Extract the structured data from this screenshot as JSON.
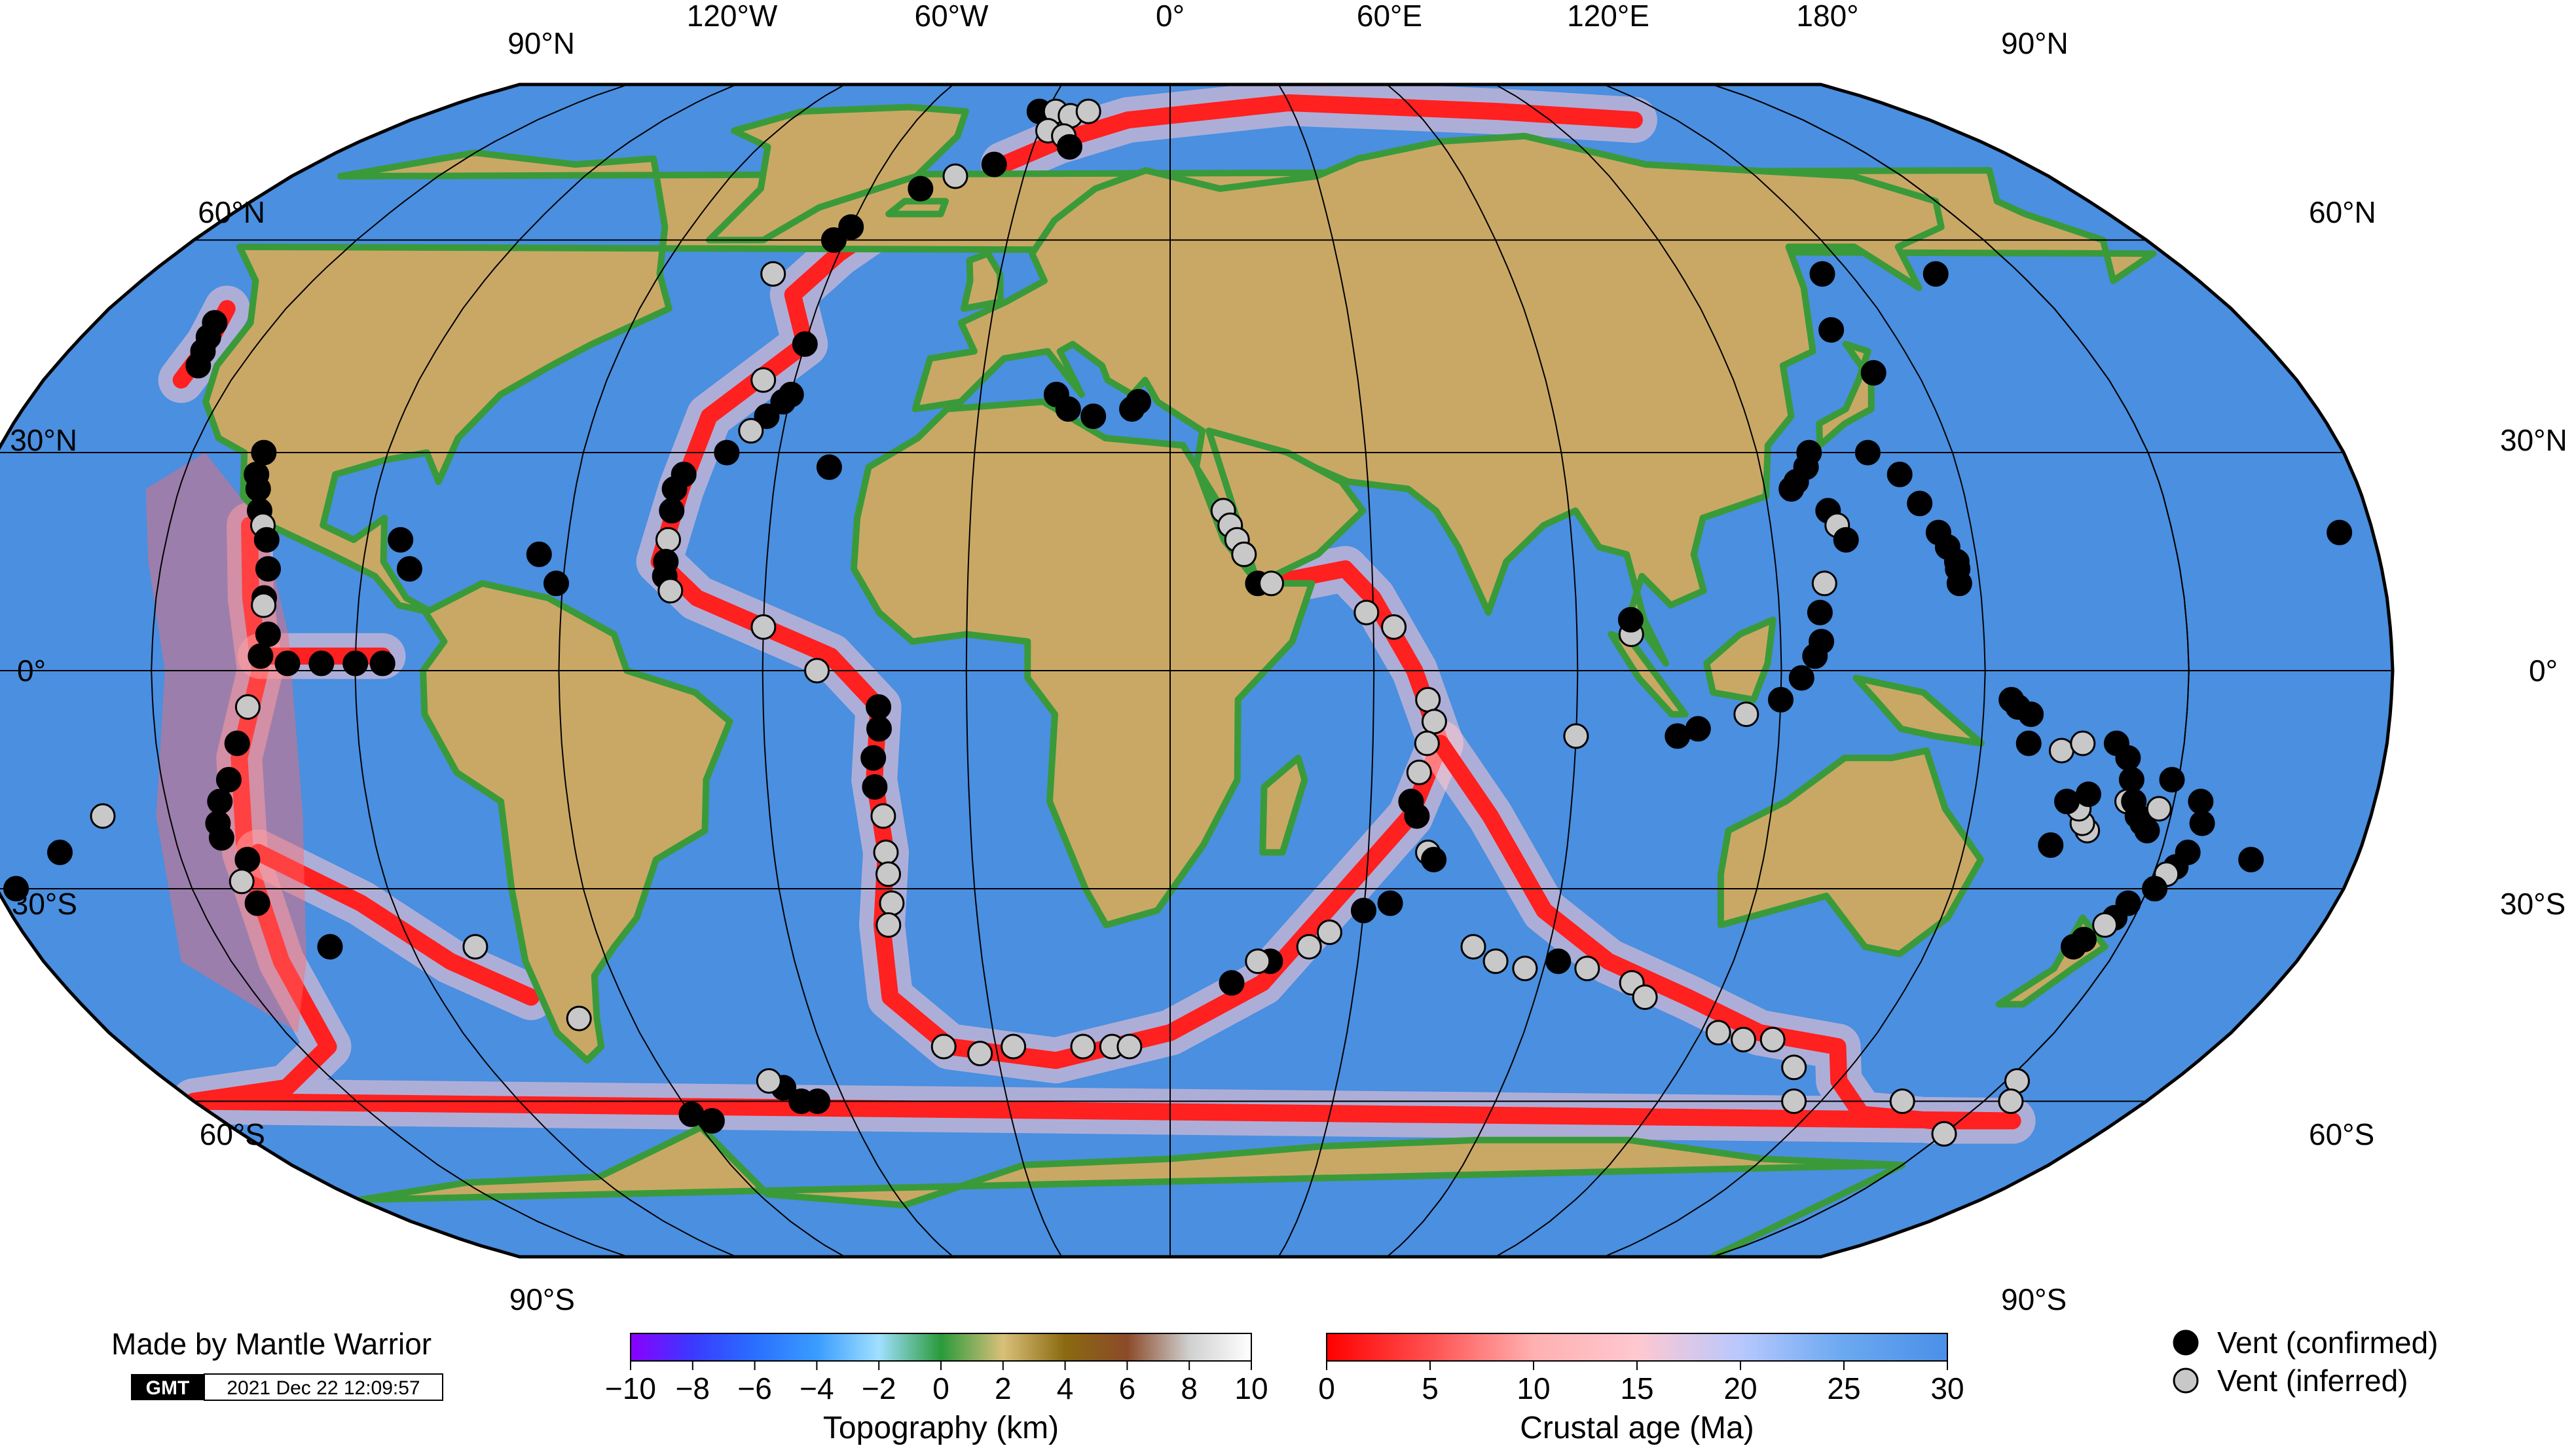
{
  "map": {
    "projection": "Robinson",
    "central_meridian_deg": 30,
    "top_lat_labels": [
      "90°N",
      "90°N"
    ],
    "bottom_lat_labels": [
      "90°S",
      "90°S"
    ],
    "lon_labels": [
      "120°W",
      "60°W",
      "0°",
      "60°E",
      "120°E",
      "180°"
    ],
    "lat_labels_left": [
      "60°N",
      "30°N",
      "0°",
      "30°S",
      "60°S"
    ],
    "lat_labels_right": [
      "60°N",
      "30°N",
      "0°",
      "30°S",
      "60°S"
    ],
    "ocean_color": "#4a8fe0",
    "ridge_color": "#ff2020",
    "land_color": "#c9a865"
  },
  "credit": {
    "author": "Made by Mantle Warrior",
    "logo": "GMT",
    "timestamp": "2021 Dec 22 12:09:57"
  },
  "colorbars": {
    "topography": {
      "title": "Topography (km)",
      "ticks": [
        "−10",
        "−8",
        "−6",
        "−4",
        "−2",
        "0",
        "2",
        "4",
        "6",
        "8",
        "10"
      ],
      "stops": [
        "#8a00ff",
        "#3a3aff",
        "#2a6fff",
        "#3a9cff",
        "#a0e0ff",
        "#2a9a3a",
        "#d9c07a",
        "#8a6a10",
        "#8b4a2a",
        "#d0d0d0",
        "#ffffff"
      ]
    },
    "crustal_age": {
      "title": "Crustal age (Ma)",
      "ticks": [
        "0",
        "5",
        "10",
        "15",
        "20",
        "25",
        "30"
      ],
      "stops": [
        "#ff0000",
        "#ff5050",
        "#ffb0b0",
        "#ffc8d0",
        "#b8c8ff",
        "#6aa8f0",
        "#4a90e8"
      ]
    }
  },
  "legend": {
    "confirmed": "Vent (confirmed)",
    "inferred": "Vent (inferred)",
    "confirmed_color": "#000000",
    "inferred_color": "#c8c8c8"
  }
}
